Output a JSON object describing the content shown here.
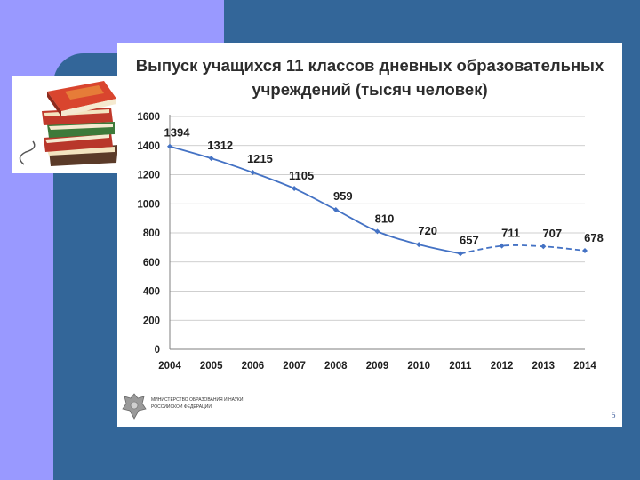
{
  "slide": {
    "title_line1": "Выпуск учащихся 11 классов дневных образовательных",
    "title_line2": "учреждений (тысяч человек)",
    "ministry_line1": "МИНИСТЕРСТВО ОБРАЗОВАНИЯ И НАУКИ",
    "ministry_line2": "РОССИЙСКОЙ ФЕДЕРАЦИИ",
    "page_number": "5",
    "decor_icon": "books-stack-icon",
    "emblem_icon": "coat-of-arms-icon"
  },
  "colors": {
    "background": "#336699",
    "accent_band": "#9999ff",
    "series_line": "#4472c4"
  },
  "chart_data": {
    "type": "line",
    "title": "Выпуск учащихся 11 классов дневных образовательных учреждений (тысяч человек)",
    "x": [
      "2004",
      "2005",
      "2006",
      "2007",
      "2008",
      "2009",
      "2010",
      "2011",
      "2012",
      "2013",
      "2014"
    ],
    "series": [
      {
        "values": [
          1394,
          1312,
          1215,
          1105,
          959,
          810,
          720,
          657,
          711,
          707,
          678
        ],
        "solid_until_index": 7,
        "dashed_from_index": 7
      }
    ],
    "ylim": [
      0,
      1600
    ],
    "yticks": [
      0,
      200,
      400,
      600,
      800,
      1000,
      1200,
      1400,
      1600
    ],
    "grid": "horizontal",
    "legend": "none",
    "data_labels": true
  }
}
